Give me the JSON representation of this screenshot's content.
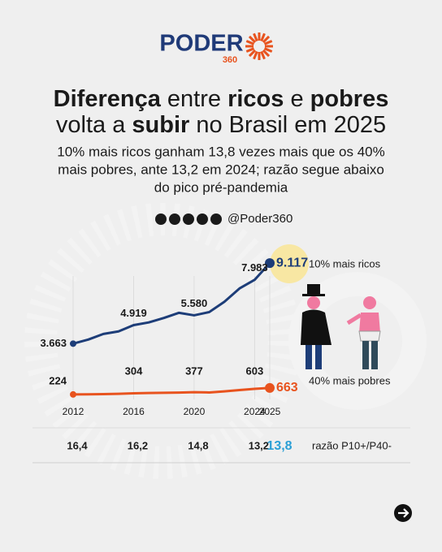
{
  "brand": {
    "name": "PODER",
    "number": "360"
  },
  "title_lines": [
    [
      {
        "text": "Diferença",
        "bold": true
      },
      {
        "text": " entre ",
        "bold": false
      },
      {
        "text": "ricos",
        "bold": true
      },
      {
        "text": " e ",
        "bold": false
      },
      {
        "text": "pobres",
        "bold": true
      }
    ],
    [
      {
        "text": "volta a ",
        "bold": false
      },
      {
        "text": "subir",
        "bold": true
      },
      {
        "text": " no Brasil em 2025",
        "bold": false
      }
    ]
  ],
  "subtitle_lines": [
    "10% mais ricos ganham 13,8 vezes mais que os 40%",
    "mais pobres, ante 13,2 em 2024; razão segue abaixo",
    "do pico pré-pandemia"
  ],
  "handle": "@Poder360",
  "chart_data": {
    "type": "line",
    "x": [
      2012,
      2013,
      2014,
      2015,
      2016,
      2017,
      2018,
      2019,
      2020,
      2021,
      2022,
      2023,
      2024,
      2025
    ],
    "xlim": [
      2012,
      2025
    ],
    "xticks": [
      2012,
      2016,
      2020,
      2024,
      2025
    ],
    "ylim": [
      0,
      10000
    ],
    "series": [
      {
        "name": "10% mais ricos",
        "color": "#1d3d78",
        "values": [
          3663,
          3940,
          4320,
          4490,
          4919,
          5100,
          5400,
          5750,
          5580,
          5800,
          6500,
          7400,
          7983,
          9117
        ],
        "value_labels": [
          "3.663",
          null,
          null,
          null,
          "4.919",
          null,
          null,
          null,
          "5.580",
          null,
          null,
          null,
          "7.983",
          "9.117"
        ]
      },
      {
        "name": "40% mais pobres",
        "color": "#e8531e",
        "values": [
          224,
          235,
          250,
          270,
          304,
          320,
          335,
          350,
          377,
          360,
          430,
          520,
          603,
          663
        ],
        "value_labels": [
          "224",
          null,
          null,
          null,
          "304",
          null,
          null,
          null,
          "377",
          null,
          null,
          null,
          "603",
          "663"
        ]
      }
    ],
    "ratio": {
      "label": "razão P10+/P40-",
      "x": [
        2012,
        2016,
        2020,
        2024,
        2025
      ],
      "values": [
        16.4,
        16.2,
        14.8,
        13.2,
        13.8
      ],
      "value_labels": [
        "16,4",
        "16,2",
        "14,8",
        "13,2",
        "13,8"
      ]
    }
  }
}
